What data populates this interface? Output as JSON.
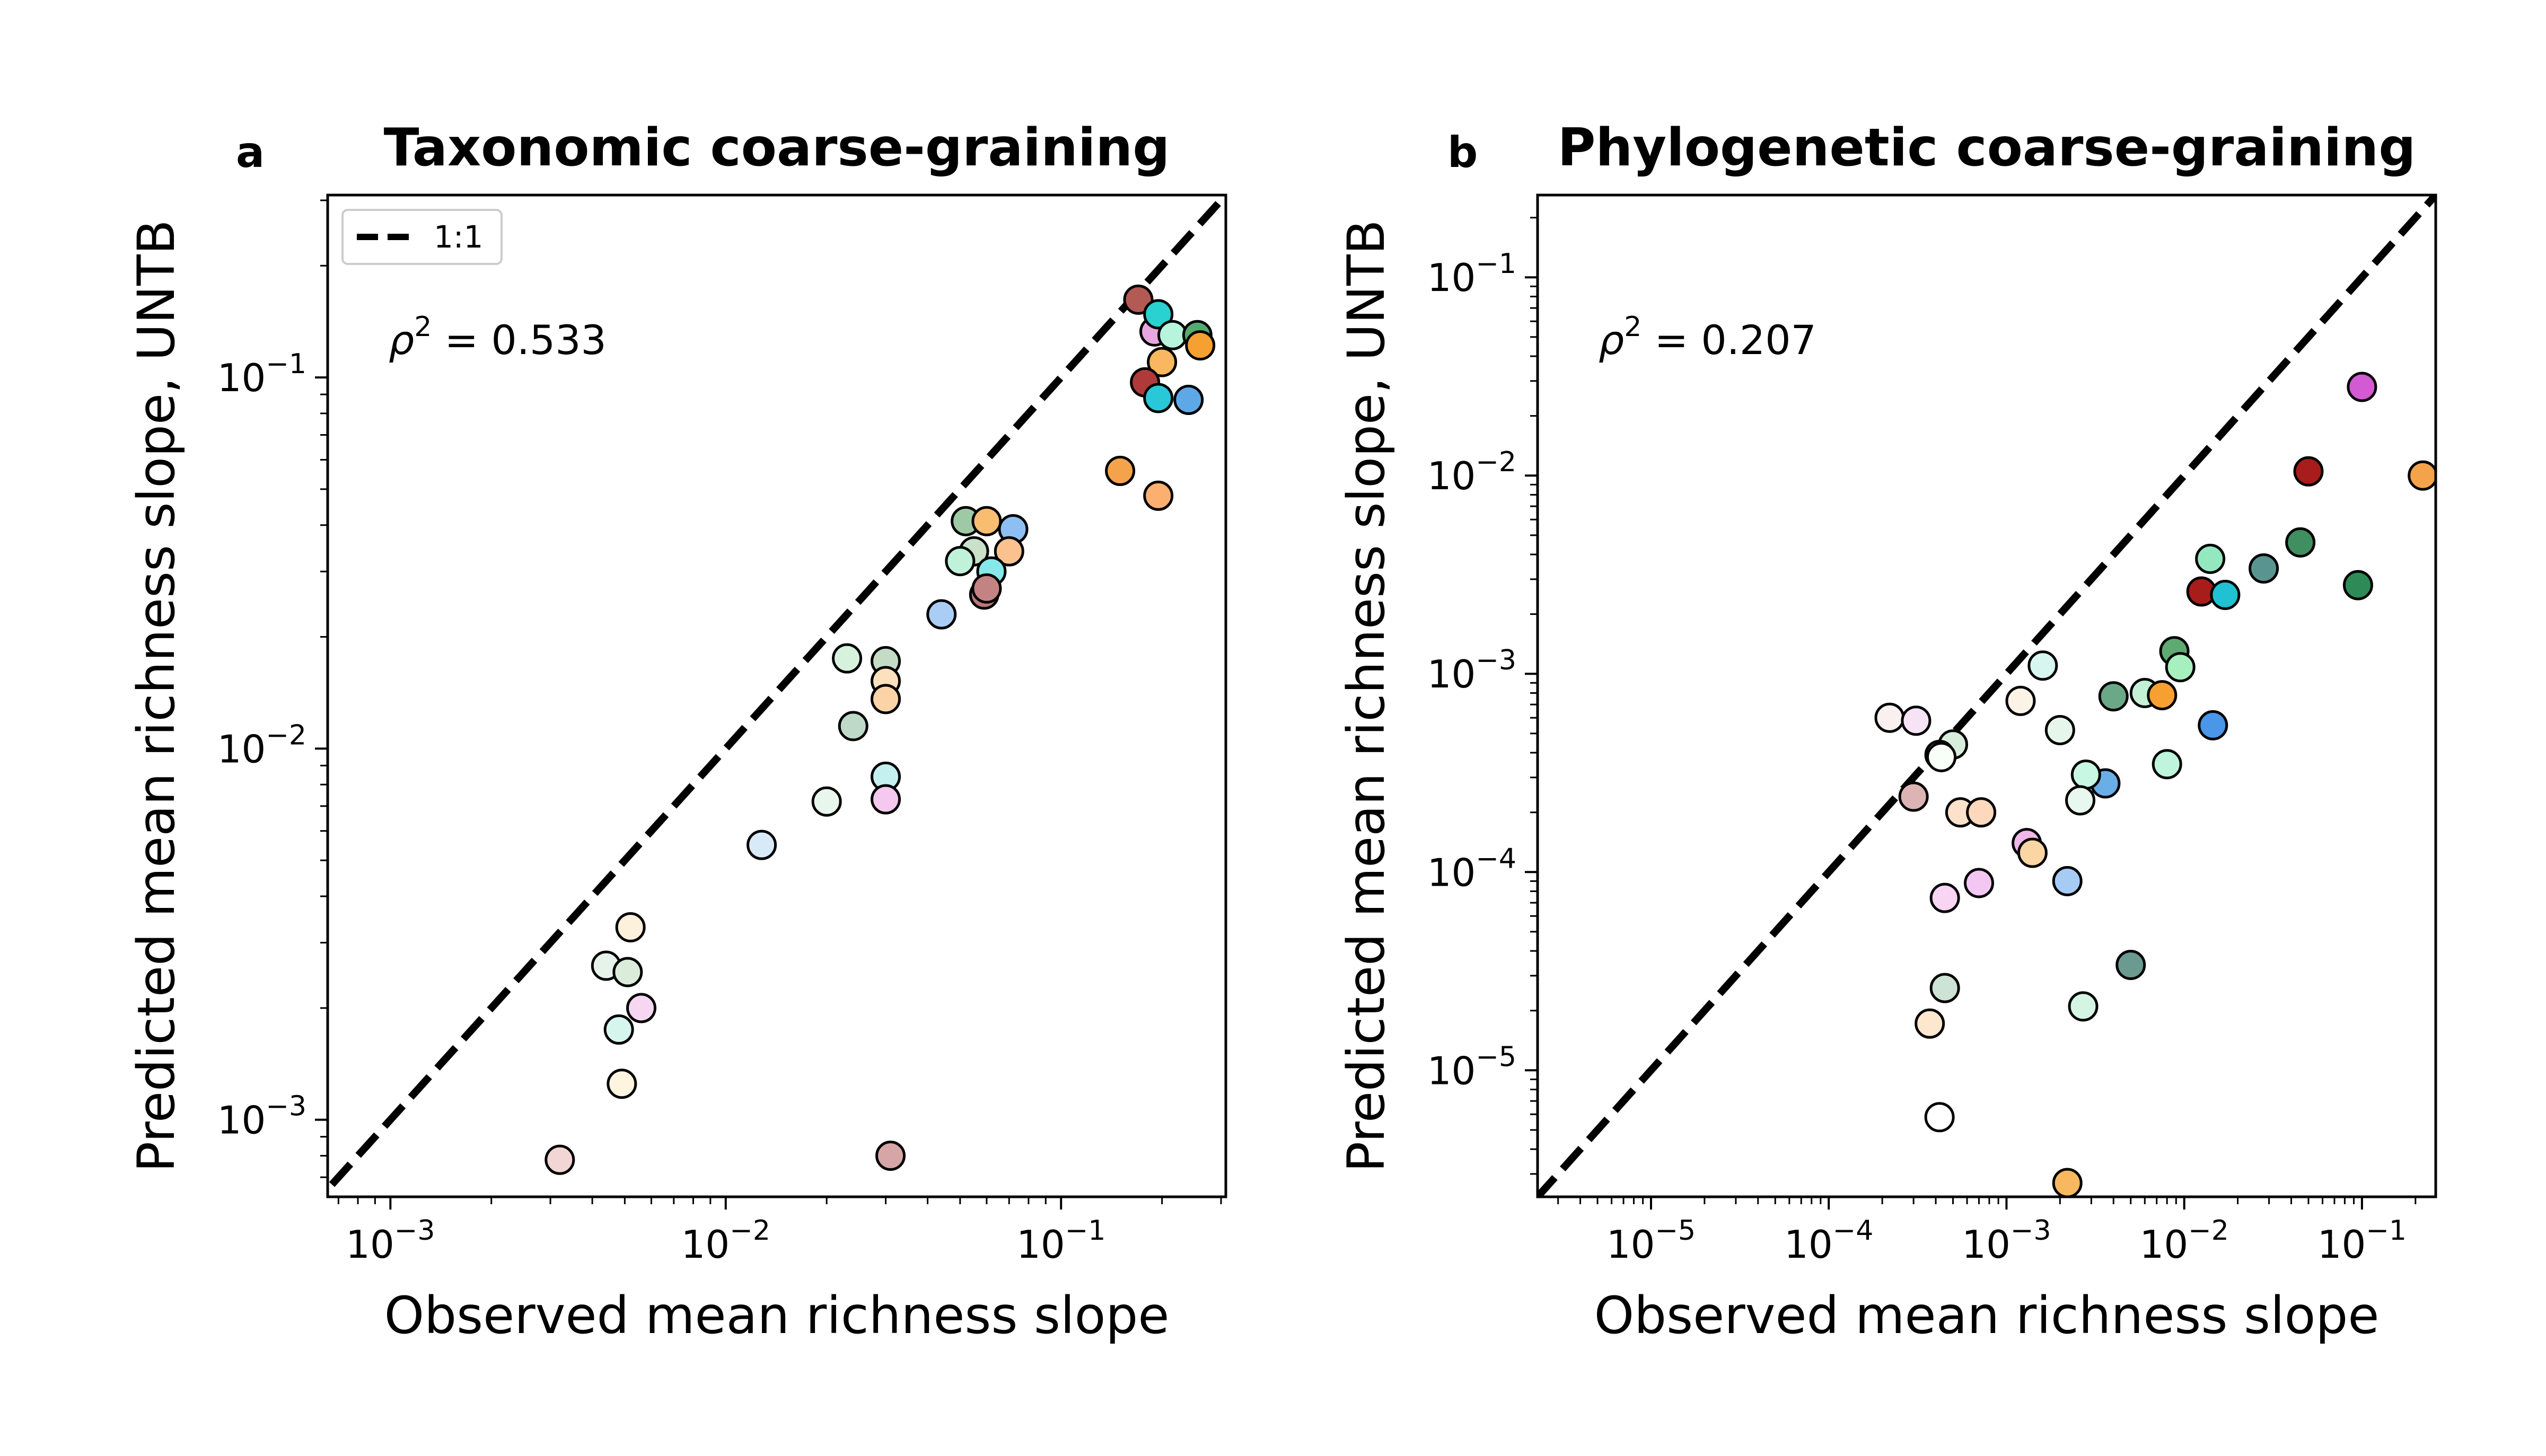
{
  "chart_data": [
    {
      "type": "scatter",
      "panel_letter": "a",
      "title": "Taxonomic coarse-graining",
      "xlabel": "Observed mean richness slope",
      "ylabel": "Predicted mean richness slope, UNTB",
      "xscale": "log",
      "yscale": "log",
      "xlim": [
        0.00065,
        0.31
      ],
      "ylim": [
        0.00062,
        0.31
      ],
      "x_ticks": [
        {
          "value": 0.001,
          "base": "10",
          "exp": "−3"
        },
        {
          "value": 0.01,
          "base": "10",
          "exp": "−2"
        },
        {
          "value": 0.1,
          "base": "10",
          "exp": "−1"
        }
      ],
      "y_ticks": [
        {
          "value": 0.001,
          "base": "10",
          "exp": "−3"
        },
        {
          "value": 0.01,
          "base": "10",
          "exp": "−2"
        },
        {
          "value": 0.1,
          "base": "10",
          "exp": "−1"
        }
      ],
      "annotation": {
        "symbol": "ρ",
        "exp": "2",
        "rest": " = 0.533"
      },
      "legend": {
        "label": "1:1",
        "placement": "top-left"
      },
      "reference_line": "1:1 dashed black",
      "grid": false,
      "points": [
        {
          "x": 0.17,
          "y": 0.162,
          "color": "#b35a55"
        },
        {
          "x": 0.19,
          "y": 0.133,
          "color": "#e8a6e0"
        },
        {
          "x": 0.195,
          "y": 0.148,
          "color": "#2ad1d1"
        },
        {
          "x": 0.215,
          "y": 0.13,
          "color": "#b8f3dc"
        },
        {
          "x": 0.255,
          "y": 0.13,
          "color": "#55aa70"
        },
        {
          "x": 0.26,
          "y": 0.122,
          "color": "#f5a031"
        },
        {
          "x": 0.2,
          "y": 0.11,
          "color": "#f9b860"
        },
        {
          "x": 0.178,
          "y": 0.097,
          "color": "#b03a3a"
        },
        {
          "x": 0.195,
          "y": 0.088,
          "color": "#28c8d8"
        },
        {
          "x": 0.24,
          "y": 0.087,
          "color": "#5ea8e8"
        },
        {
          "x": 0.15,
          "y": 0.056,
          "color": "#f5a34a"
        },
        {
          "x": 0.195,
          "y": 0.048,
          "color": "#fbb070"
        },
        {
          "x": 0.052,
          "y": 0.041,
          "color": "#9fc9a4"
        },
        {
          "x": 0.06,
          "y": 0.041,
          "color": "#f9bd72"
        },
        {
          "x": 0.072,
          "y": 0.039,
          "color": "#8ebff2"
        },
        {
          "x": 0.055,
          "y": 0.034,
          "color": "#c9e0c9"
        },
        {
          "x": 0.07,
          "y": 0.034,
          "color": "#fbc290"
        },
        {
          "x": 0.05,
          "y": 0.032,
          "color": "#bff2d9"
        },
        {
          "x": 0.062,
          "y": 0.03,
          "color": "#86e8e8"
        },
        {
          "x": 0.059,
          "y": 0.026,
          "color": "#b97878"
        },
        {
          "x": 0.06,
          "y": 0.027,
          "color": "#c48383"
        },
        {
          "x": 0.044,
          "y": 0.023,
          "color": "#a9cdf5"
        },
        {
          "x": 0.023,
          "y": 0.0175,
          "color": "#d6f2dc"
        },
        {
          "x": 0.03,
          "y": 0.0172,
          "color": "#c4dcc4"
        },
        {
          "x": 0.03,
          "y": 0.0152,
          "color": "#fde0bd"
        },
        {
          "x": 0.03,
          "y": 0.0136,
          "color": "#fcd3a7"
        },
        {
          "x": 0.024,
          "y": 0.0115,
          "color": "#bfd9c9"
        },
        {
          "x": 0.03,
          "y": 0.0084,
          "color": "#c4f0f0"
        },
        {
          "x": 0.03,
          "y": 0.0073,
          "color": "#f5c8f0"
        },
        {
          "x": 0.02,
          "y": 0.0072,
          "color": "#e9f6ee"
        },
        {
          "x": 0.0128,
          "y": 0.0055,
          "color": "#d8eaf8"
        },
        {
          "x": 0.0052,
          "y": 0.0033,
          "color": "#fdf0dc"
        },
        {
          "x": 0.0044,
          "y": 0.0026,
          "color": "#e7f3ea"
        },
        {
          "x": 0.0051,
          "y": 0.0025,
          "color": "#dbecdb"
        },
        {
          "x": 0.0056,
          "y": 0.002,
          "color": "#f6d6f0"
        },
        {
          "x": 0.0048,
          "y": 0.00175,
          "color": "#d6f5ed"
        },
        {
          "x": 0.0049,
          "y": 0.00125,
          "color": "#fef4e0"
        },
        {
          "x": 0.0032,
          "y": 0.00078,
          "color": "#f2d6d6"
        },
        {
          "x": 0.031,
          "y": 0.0008,
          "color": "#d6a6a6"
        }
      ]
    },
    {
      "type": "scatter",
      "panel_letter": "b",
      "title": "Phylogenetic coarse-graining",
      "xlabel": "Observed mean richness slope",
      "ylabel": "Predicted mean richness slope, UNTB",
      "xscale": "log",
      "yscale": "log",
      "xlim": [
        2.3e-06,
        0.26
      ],
      "ylim": [
        2.3e-06,
        0.26
      ],
      "x_ticks": [
        {
          "value": 1e-05,
          "base": "10",
          "exp": "−5"
        },
        {
          "value": 0.0001,
          "base": "10",
          "exp": "−4"
        },
        {
          "value": 0.001,
          "base": "10",
          "exp": "−3"
        },
        {
          "value": 0.01,
          "base": "10",
          "exp": "−2"
        },
        {
          "value": 0.1,
          "base": "10",
          "exp": "−1"
        }
      ],
      "y_ticks": [
        {
          "value": 1e-05,
          "base": "10",
          "exp": "−5"
        },
        {
          "value": 0.0001,
          "base": "10",
          "exp": "−4"
        },
        {
          "value": 0.001,
          "base": "10",
          "exp": "−3"
        },
        {
          "value": 0.01,
          "base": "10",
          "exp": "−2"
        },
        {
          "value": 0.1,
          "base": "10",
          "exp": "−1"
        }
      ],
      "annotation": {
        "symbol": "ρ",
        "exp": "2",
        "rest": " = 0.207"
      },
      "legend": null,
      "reference_line": "1:1 dashed black",
      "grid": false,
      "points": [
        {
          "x": 0.1,
          "y": 0.028,
          "color": "#d25ad2"
        },
        {
          "x": 0.22,
          "y": 0.01,
          "color": "#f5a34a"
        },
        {
          "x": 0.05,
          "y": 0.0105,
          "color": "#a81c1c"
        },
        {
          "x": 0.045,
          "y": 0.0046,
          "color": "#3f8f60"
        },
        {
          "x": 0.095,
          "y": 0.0028,
          "color": "#2e8b57"
        },
        {
          "x": 0.028,
          "y": 0.0034,
          "color": "#5a9490"
        },
        {
          "x": 0.014,
          "y": 0.0038,
          "color": "#93e8c0"
        },
        {
          "x": 0.0125,
          "y": 0.0026,
          "color": "#a81c1c"
        },
        {
          "x": 0.017,
          "y": 0.0025,
          "color": "#1fc2d2"
        },
        {
          "x": 0.0088,
          "y": 0.0013,
          "color": "#5fa972"
        },
        {
          "x": 0.0095,
          "y": 0.00108,
          "color": "#a6f0c0"
        },
        {
          "x": 0.006,
          "y": 0.0008,
          "color": "#c4f0d6"
        },
        {
          "x": 0.0075,
          "y": 0.00078,
          "color": "#f5a030"
        },
        {
          "x": 0.004,
          "y": 0.00077,
          "color": "#6aa888"
        },
        {
          "x": 0.0145,
          "y": 0.00055,
          "color": "#4a96e8"
        },
        {
          "x": 0.008,
          "y": 0.00035,
          "color": "#bff5dc"
        },
        {
          "x": 0.0036,
          "y": 0.00028,
          "color": "#6aaee8"
        },
        {
          "x": 0.0028,
          "y": 0.00031,
          "color": "#c8f7e4"
        },
        {
          "x": 0.0026,
          "y": 0.00023,
          "color": "#e8f8f0"
        },
        {
          "x": 0.002,
          "y": 0.00052,
          "color": "#e6f6ea"
        },
        {
          "x": 0.0016,
          "y": 0.0011,
          "color": "#d8f6f0"
        },
        {
          "x": 0.0012,
          "y": 0.00073,
          "color": "#fcf3e7"
        },
        {
          "x": 0.00022,
          "y": 0.0006,
          "color": "#fbf0f0"
        },
        {
          "x": 0.00031,
          "y": 0.00058,
          "color": "#f6e4f6"
        },
        {
          "x": 0.0005,
          "y": 0.00044,
          "color": "#d8ecdc"
        },
        {
          "x": 0.00042,
          "y": 0.00039,
          "color": "#f0f8f4"
        },
        {
          "x": 0.00043,
          "y": 0.00038,
          "color": "#f8fff8"
        },
        {
          "x": 0.0003,
          "y": 0.00024,
          "color": "#dcb4b4"
        },
        {
          "x": 0.00055,
          "y": 0.0002,
          "color": "#fde2cb"
        },
        {
          "x": 0.00072,
          "y": 0.0002,
          "color": "#fdd8bd"
        },
        {
          "x": 0.0013,
          "y": 0.00014,
          "color": "#f0b8e8"
        },
        {
          "x": 0.0014,
          "y": 0.000125,
          "color": "#fbd5a4"
        },
        {
          "x": 0.0007,
          "y": 8.8e-05,
          "color": "#f2c8f2"
        },
        {
          "x": 0.00045,
          "y": 7.4e-05,
          "color": "#f8d5f2"
        },
        {
          "x": 0.0022,
          "y": 9e-05,
          "color": "#a6cbf5"
        },
        {
          "x": 0.00045,
          "y": 2.6e-05,
          "color": "#cde3d3"
        },
        {
          "x": 0.0027,
          "y": 2.1e-05,
          "color": "#d4f5e4"
        },
        {
          "x": 0.005,
          "y": 3.4e-05,
          "color": "#6a9a90"
        },
        {
          "x": 0.00037,
          "y": 1.72e-05,
          "color": "#fde8cf"
        },
        {
          "x": 0.00042,
          "y": 5.8e-06,
          "color": "#ffffff"
        },
        {
          "x": 0.0022,
          "y": 2.7e-06,
          "color": "#f8b860"
        }
      ]
    }
  ]
}
